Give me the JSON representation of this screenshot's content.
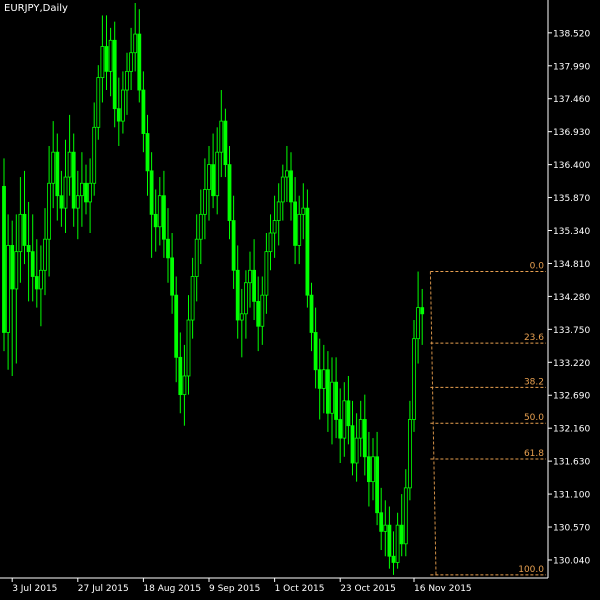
{
  "window": {
    "symbol_label": "EURJPY,Daily"
  },
  "colors": {
    "background": "#000000",
    "candle": "#00ff00",
    "axis": "#ffffff",
    "fib": "#e8a050"
  },
  "chart_data": {
    "type": "candlestick",
    "title": "EURJPY,Daily",
    "y_ticks": [
      "138.520",
      "137.990",
      "137.460",
      "136.930",
      "136.400",
      "135.870",
      "135.340",
      "134.810",
      "134.280",
      "133.750",
      "133.220",
      "132.690",
      "132.160",
      "131.630",
      "131.100",
      "130.570",
      "130.040"
    ],
    "ylim": [
      129.75,
      139.0
    ],
    "x_ticks": [
      {
        "label": "3 Jul 2015",
        "bar": 2
      },
      {
        "label": "27 Jul 2015",
        "bar": 18
      },
      {
        "label": "18 Aug 2015",
        "bar": 34
      },
      {
        "label": "9 Sep 2015",
        "bar": 50
      },
      {
        "label": "1 Oct 2015",
        "bar": 66
      },
      {
        "label": "23 Oct 2015",
        "bar": 82
      },
      {
        "label": "16 Nov 2015",
        "bar": 100
      }
    ],
    "fibonacci": {
      "high": 134.68,
      "low": 129.8,
      "levels": [
        {
          "label": "0.0",
          "ratio": 0
        },
        {
          "label": "23.6",
          "ratio": 0.236
        },
        {
          "label": "38.2",
          "ratio": 0.382
        },
        {
          "label": "50.0",
          "ratio": 0.5
        },
        {
          "label": "61.8",
          "ratio": 0.618
        },
        {
          "label": "100.0",
          "ratio": 1.0
        }
      ],
      "start_bar": 104
    },
    "ohlc": [
      [
        136.05,
        136.5,
        133.4,
        133.7
      ],
      [
        133.7,
        135.6,
        133.1,
        135.1
      ],
      [
        135.1,
        135.5,
        133.0,
        134.4
      ],
      [
        134.4,
        135.6,
        133.2,
        135.0
      ],
      [
        135.0,
        136.2,
        134.5,
        135.6
      ],
      [
        135.6,
        136.3,
        134.8,
        135.1
      ],
      [
        135.1,
        135.8,
        134.2,
        135.0
      ],
      [
        135.0,
        135.6,
        134.2,
        134.6
      ],
      [
        134.6,
        135.2,
        134.1,
        134.4
      ],
      [
        134.4,
        135.1,
        133.8,
        134.7
      ],
      [
        134.7,
        135.7,
        134.3,
        135.2
      ],
      [
        135.2,
        136.7,
        134.6,
        136.1
      ],
      [
        136.1,
        137.1,
        135.7,
        136.6
      ],
      [
        136.6,
        136.9,
        135.5,
        135.9
      ],
      [
        135.9,
        136.3,
        135.4,
        135.7
      ],
      [
        135.7,
        136.8,
        135.3,
        136.2
      ],
      [
        136.2,
        137.2,
        135.9,
        136.6
      ],
      [
        136.6,
        136.9,
        135.4,
        135.7
      ],
      [
        135.7,
        136.3,
        135.2,
        135.9
      ],
      [
        135.9,
        136.6,
        135.4,
        136.1
      ],
      [
        136.1,
        136.4,
        135.6,
        135.8
      ],
      [
        135.8,
        136.5,
        135.3,
        136.1
      ],
      [
        136.1,
        137.4,
        135.9,
        137.0
      ],
      [
        137.0,
        138.0,
        136.8,
        137.8
      ],
      [
        137.8,
        138.8,
        137.4,
        138.3
      ],
      [
        138.3,
        138.8,
        137.6,
        137.9
      ],
      [
        137.9,
        138.6,
        137.5,
        138.4
      ],
      [
        138.4,
        138.7,
        137.0,
        137.3
      ],
      [
        137.3,
        137.8,
        136.7,
        137.1
      ],
      [
        137.1,
        137.9,
        136.9,
        137.6
      ],
      [
        137.6,
        138.2,
        137.2,
        137.9
      ],
      [
        137.9,
        138.6,
        137.6,
        138.2
      ],
      [
        138.2,
        139.0,
        137.9,
        138.5
      ],
      [
        138.5,
        138.9,
        137.4,
        137.6
      ],
      [
        137.6,
        137.9,
        136.6,
        136.9
      ],
      [
        136.9,
        137.2,
        135.9,
        136.3
      ],
      [
        136.3,
        136.6,
        134.9,
        135.6
      ],
      [
        135.6,
        136.0,
        135.0,
        135.4
      ],
      [
        135.4,
        136.2,
        135.1,
        135.9
      ],
      [
        135.9,
        136.3,
        134.9,
        135.2
      ],
      [
        135.2,
        135.7,
        134.5,
        134.9
      ],
      [
        134.9,
        135.3,
        134.0,
        134.3
      ],
      [
        134.3,
        134.6,
        132.9,
        133.3
      ],
      [
        133.3,
        133.7,
        132.4,
        132.7
      ],
      [
        132.7,
        133.5,
        132.2,
        133.0
      ],
      [
        133.0,
        134.3,
        132.7,
        133.9
      ],
      [
        133.9,
        134.9,
        133.6,
        134.6
      ],
      [
        134.6,
        135.6,
        134.2,
        135.2
      ],
      [
        135.2,
        136.0,
        134.8,
        135.6
      ],
      [
        135.6,
        136.5,
        135.2,
        136.0
      ],
      [
        136.0,
        136.7,
        135.5,
        136.4
      ],
      [
        136.4,
        136.9,
        135.7,
        135.9
      ],
      [
        135.9,
        137.0,
        135.6,
        136.6
      ],
      [
        136.6,
        137.6,
        136.2,
        137.1
      ],
      [
        137.1,
        137.3,
        136.2,
        136.4
      ],
      [
        136.4,
        136.7,
        135.2,
        135.5
      ],
      [
        135.5,
        135.9,
        134.4,
        134.7
      ],
      [
        134.7,
        135.1,
        133.6,
        133.9
      ],
      [
        133.9,
        134.4,
        133.3,
        134.0
      ],
      [
        134.0,
        134.7,
        133.6,
        134.5
      ],
      [
        134.5,
        135.0,
        134.1,
        134.7
      ],
      [
        134.7,
        135.2,
        133.9,
        134.2
      ],
      [
        134.2,
        134.6,
        133.4,
        133.8
      ],
      [
        133.8,
        134.6,
        133.5,
        134.3
      ],
      [
        134.3,
        135.3,
        134.0,
        135.0
      ],
      [
        135.0,
        135.6,
        134.7,
        135.3
      ],
      [
        135.3,
        135.9,
        134.9,
        135.5
      ],
      [
        135.5,
        136.1,
        135.1,
        135.8
      ],
      [
        135.8,
        136.4,
        135.5,
        136.2
      ],
      [
        136.2,
        136.7,
        135.8,
        136.3
      ],
      [
        136.3,
        136.6,
        135.5,
        135.8
      ],
      [
        135.8,
        136.2,
        134.8,
        135.1
      ],
      [
        135.1,
        135.9,
        134.8,
        135.6
      ],
      [
        135.6,
        136.1,
        135.2,
        135.7
      ],
      [
        135.7,
        136.0,
        134.1,
        134.3
      ],
      [
        134.3,
        134.5,
        133.4,
        133.7
      ],
      [
        133.7,
        134.1,
        132.8,
        133.1
      ],
      [
        133.1,
        133.6,
        132.3,
        132.8
      ],
      [
        132.8,
        133.5,
        132.4,
        133.1
      ],
      [
        133.1,
        133.4,
        132.1,
        132.4
      ],
      [
        132.4,
        133.3,
        131.9,
        132.9
      ],
      [
        132.9,
        133.3,
        132.0,
        132.3
      ],
      [
        132.3,
        132.8,
        131.6,
        132.0
      ],
      [
        132.0,
        132.9,
        131.7,
        132.6
      ],
      [
        132.6,
        133.0,
        131.9,
        132.2
      ],
      [
        132.2,
        132.6,
        131.4,
        131.6
      ],
      [
        131.6,
        132.4,
        131.3,
        132.0
      ],
      [
        132.0,
        132.6,
        131.7,
        132.3
      ],
      [
        132.3,
        132.7,
        131.4,
        131.7
      ],
      [
        131.7,
        132.1,
        130.9,
        131.3
      ],
      [
        131.3,
        132.0,
        131.0,
        131.7
      ],
      [
        131.7,
        132.1,
        130.6,
        130.8
      ],
      [
        130.8,
        131.2,
        130.2,
        130.5
      ],
      [
        130.5,
        131.0,
        130.1,
        130.6
      ],
      [
        130.6,
        130.9,
        129.9,
        130.1
      ],
      [
        130.1,
        130.5,
        129.8,
        130.0
      ],
      [
        130.0,
        130.8,
        129.9,
        130.6
      ],
      [
        130.6,
        131.1,
        130.1,
        130.3
      ],
      [
        130.3,
        131.5,
        130.1,
        131.2
      ],
      [
        131.2,
        132.6,
        131.0,
        132.3
      ],
      [
        132.3,
        133.9,
        132.1,
        133.6
      ],
      [
        133.6,
        134.68,
        133.2,
        134.1
      ],
      [
        134.1,
        134.4,
        133.5,
        134.0
      ]
    ]
  }
}
